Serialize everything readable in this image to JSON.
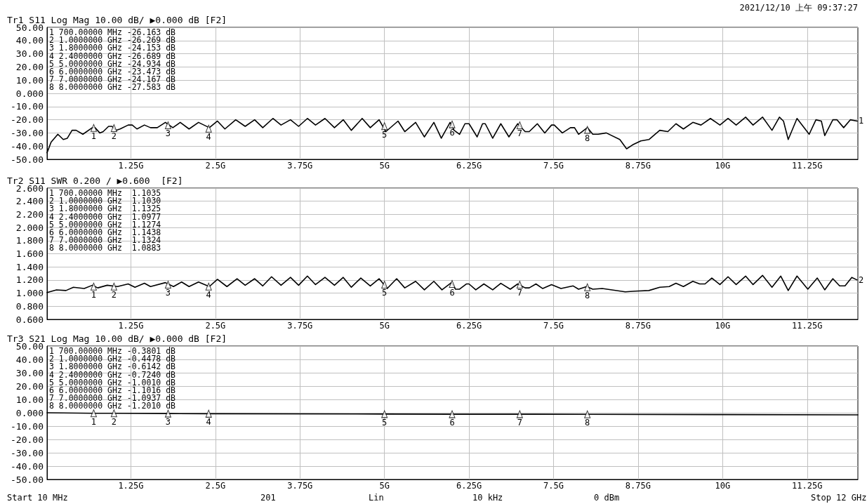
{
  "chart_data": [
    {
      "type": "line",
      "title": "Tr1 S11 Log Mag 10.00 dB/ ▶0.000 dB [F2]",
      "subtitle": "2021/12/10 上午 09:37:27",
      "annotations": [
        "1 700.00000 MHz -26.163 dB",
        "2 1.0000000 GHz -26.269 dB",
        "3 1.8000000 GHz -24.153 dB",
        "4 2.4000000 GHz -26.689 dB",
        "5 5.0000000 GHz -24.934 dB",
        "6 6.0000000 GHz -23.473 dB",
        "7 7.0000000 GHz -24.167 dB",
        "8 8.0000000 GHz -27.583 dB",
        {
          "text": "1",
          "x": 0.7,
          "y": -26.2
        },
        {
          "text": "2",
          "x": 1,
          "y": -26.3
        },
        {
          "text": "3",
          "x": 1.8,
          "y": -24.2
        },
        {
          "text": "4",
          "x": 2.4,
          "y": -26.7
        },
        {
          "text": "5",
          "x": 5,
          "y": -24.9
        },
        {
          "text": "6",
          "x": 6,
          "y": -23.5
        },
        {
          "text": "7",
          "x": 7,
          "y": -24.2
        },
        {
          "text": "8",
          "x": 8,
          "y": -27.6
        }
      ],
      "xlim": [
        0.01,
        12
      ],
      "xticks": [
        {
          "value": 1.25,
          "label": "1.25G"
        },
        {
          "value": 2.5,
          "label": "2.5G"
        },
        {
          "value": 3.75,
          "label": "3.75G"
        },
        {
          "value": 5,
          "label": "5G"
        },
        {
          "value": 6.25,
          "label": "6.25G"
        },
        {
          "value": 7.5,
          "label": "7.5G"
        },
        {
          "value": 8.75,
          "label": "8.75G"
        },
        {
          "value": 10,
          "label": "10G"
        },
        {
          "value": 11.25,
          "label": "11.25G"
        }
      ],
      "ylim": [
        -50,
        50
      ],
      "yticks": [
        {
          "value": -50,
          "label": "-50.00"
        },
        {
          "value": -40,
          "label": "-40.00"
        },
        {
          "value": -30,
          "label": "-30.00"
        },
        {
          "value": -20,
          "label": "-20.00"
        },
        {
          "value": -10,
          "label": "-10.00"
        },
        {
          "value": 0,
          "label": "0.000"
        },
        {
          "value": 10,
          "label": "10.00"
        },
        {
          "value": 20,
          "label": "20.00"
        },
        {
          "value": 30,
          "label": "30.00"
        },
        {
          "value": 40,
          "label": "40.00"
        },
        {
          "value": 50,
          "label": "50.00"
        }
      ],
      "grid": true,
      "legend": false,
      "marker": "none",
      "line_style": "solid",
      "series": [
        {
          "name": "1",
          "color": "#000000",
          "x": [
            0.01,
            0.07,
            0.17,
            0.25,
            0.31,
            0.38,
            0.44,
            0.54,
            0.68,
            0.72,
            0.79,
            0.84,
            0.92,
            0.97,
            1.03,
            1.09,
            1.21,
            1.27,
            1.34,
            1.45,
            1.54,
            1.64,
            1.76,
            1.87,
            1.98,
            2.11,
            2.25,
            2.41,
            2.53,
            2.64,
            2.8,
            2.94,
            3.08,
            3.2,
            3.35,
            3.47,
            3.61,
            3.73,
            3.86,
            3.98,
            4.12,
            4.26,
            4.39,
            4.51,
            4.67,
            4.79,
            4.92,
            5.02,
            5.2,
            5.3,
            5.46,
            5.59,
            5.73,
            5.84,
            5.97,
            6.03,
            6.11,
            6.19,
            6.25,
            6.37,
            6.45,
            6.49,
            6.6,
            6.72,
            6.84,
            6.97,
            7.08,
            7.14,
            7.26,
            7.37,
            7.47,
            7.51,
            7.63,
            7.75,
            7.81,
            7.87,
            8.0,
            8.08,
            8.16,
            8.28,
            8.48,
            8.58,
            8.67,
            8.79,
            8.91,
            9.07,
            9.19,
            9.31,
            9.42,
            9.56,
            9.68,
            9.82,
            9.96,
            10.08,
            10.2,
            10.34,
            10.45,
            10.59,
            10.73,
            10.84,
            10.9,
            10.97,
            11.1,
            11.28,
            11.38,
            11.46,
            11.51,
            11.63,
            11.69,
            11.79,
            11.89,
            11.99
          ],
          "values": [
            -45,
            -37,
            -31,
            -35,
            -34,
            -28,
            -28,
            -31,
            -26,
            -26,
            -30,
            -29,
            -25,
            -25,
            -28,
            -27,
            -24,
            -24,
            -27,
            -24,
            -26,
            -26,
            -22,
            -26,
            -22,
            -27,
            -22,
            -26,
            -21,
            -27,
            -20,
            -25,
            -20,
            -26,
            -19,
            -24,
            -20,
            -25,
            -19,
            -24,
            -19,
            -26,
            -20,
            -28,
            -19,
            -26,
            -20,
            -29,
            -21,
            -29,
            -22,
            -33,
            -22,
            -34,
            -22,
            -28,
            -31,
            -23,
            -23,
            -33,
            -23,
            -23,
            -34,
            -23,
            -33,
            -23,
            -29,
            -29,
            -23,
            -30,
            -24,
            -24,
            -30,
            -26,
            -26,
            -31,
            -26,
            -31,
            -31,
            -30,
            -35,
            -42,
            -39,
            -36,
            -35,
            -28,
            -29,
            -23,
            -27,
            -22,
            -24,
            -19,
            -24,
            -19,
            -24,
            -18,
            -24,
            -18,
            -28,
            -18,
            -21,
            -35,
            -19,
            -31,
            -20,
            -21,
            -32,
            -20,
            -20,
            -26,
            -20,
            -21
          ]
        },
        {
          "type": "scatter",
          "marker": "triangle",
          "color": "#ffffff",
          "x": [
            0.7,
            1,
            1.8,
            2.4,
            5,
            6,
            7,
            8
          ],
          "values": [
            -26.2,
            -26.3,
            -24.2,
            -26.7,
            -24.9,
            -23.5,
            -24.2,
            -27.6
          ]
        }
      ]
    },
    {
      "type": "line",
      "title": "Tr2 S11 SWR 0.200 / ▶0.600  [F2]",
      "annotations": [
        "1 700.00000 MHz  1.1035",
        "2 1.0000000 GHz  1.1030",
        "3 1.8000000 GHz  1.1325",
        "4 2.4000000 GHz  1.0977",
        "5 5.0000000 GHz  1.1274",
        "6 6.0000000 GHz  1.1438",
        "7 7.0000000 GHz  1.1324",
        "8 8.0000000 GHz  1.0883",
        {
          "text": "1",
          "x": 0.7,
          "y": 1.1
        },
        {
          "text": "2",
          "x": 1,
          "y": 1.1
        },
        {
          "text": "3",
          "x": 1.8,
          "y": 1.13
        },
        {
          "text": "4",
          "x": 2.4,
          "y": 1.1
        },
        {
          "text": "5",
          "x": 5,
          "y": 1.13
        },
        {
          "text": "6",
          "x": 6,
          "y": 1.14
        },
        {
          "text": "7",
          "x": 7,
          "y": 1.13
        },
        {
          "text": "8",
          "x": 8,
          "y": 1.09
        }
      ],
      "xlim": [
        0.01,
        12
      ],
      "xticks": [
        {
          "value": 1.25,
          "label": "1.25G"
        },
        {
          "value": 2.5,
          "label": "2.5G"
        },
        {
          "value": 3.75,
          "label": "3.75G"
        },
        {
          "value": 5,
          "label": "5G"
        },
        {
          "value": 6.25,
          "label": "6.25G"
        },
        {
          "value": 7.5,
          "label": "7.5G"
        },
        {
          "value": 8.75,
          "label": "8.75G"
        },
        {
          "value": 10,
          "label": "10G"
        },
        {
          "value": 11.25,
          "label": "11.25G"
        }
      ],
      "ylim": [
        0.6,
        2.6
      ],
      "yticks": [
        {
          "value": 0.6,
          "label": "0.600"
        },
        {
          "value": 0.8,
          "label": "0.800"
        },
        {
          "value": 1,
          "label": "1.000"
        },
        {
          "value": 1.2,
          "label": "1.200"
        },
        {
          "value": 1.4,
          "label": "1.400"
        },
        {
          "value": 1.6,
          "label": "1.600"
        },
        {
          "value": 1.8,
          "label": "1.800"
        },
        {
          "value": 2,
          "label": "2.000"
        },
        {
          "value": 2.2,
          "label": "2.200"
        },
        {
          "value": 2.4,
          "label": "2.400"
        },
        {
          "value": 2.6,
          "label": "2.600"
        }
      ],
      "grid": true,
      "legend": false,
      "marker": "none",
      "line_style": "solid",
      "series": [
        {
          "name": "2",
          "color": "#000000",
          "x": [
            0.01,
            0.15,
            0.29,
            0.4,
            0.56,
            0.68,
            0.76,
            0.9,
            1.05,
            1.21,
            1.31,
            1.45,
            1.54,
            1.76,
            1.88,
            2.0,
            2.11,
            2.25,
            2.41,
            2.53,
            2.67,
            2.82,
            2.94,
            3.08,
            3.2,
            3.33,
            3.47,
            3.61,
            3.73,
            3.86,
            3.98,
            4.12,
            4.26,
            4.39,
            4.51,
            4.65,
            4.79,
            4.92,
            5.04,
            5.18,
            5.3,
            5.46,
            5.59,
            5.73,
            5.85,
            5.99,
            6.05,
            6.11,
            6.21,
            6.25,
            6.35,
            6.47,
            6.6,
            6.72,
            6.86,
            6.97,
            7.08,
            7.14,
            7.24,
            7.34,
            7.47,
            7.61,
            7.79,
            7.87,
            7.99,
            8.08,
            8.22,
            8.56,
            8.71,
            8.91,
            9.07,
            9.21,
            9.31,
            9.42,
            9.56,
            9.66,
            9.74,
            9.84,
            9.96,
            10.08,
            10.2,
            10.34,
            10.45,
            10.59,
            10.73,
            10.86,
            10.97,
            11.1,
            11.26,
            11.4,
            11.51,
            11.63,
            11.73,
            11.81,
            11.91,
            11.99
          ],
          "values": [
            1.01,
            1.05,
            1.04,
            1.09,
            1.07,
            1.12,
            1.08,
            1.12,
            1.1,
            1.14,
            1.09,
            1.15,
            1.1,
            1.16,
            1.1,
            1.17,
            1.1,
            1.17,
            1.1,
            1.21,
            1.1,
            1.22,
            1.12,
            1.22,
            1.11,
            1.25,
            1.12,
            1.24,
            1.12,
            1.26,
            1.13,
            1.24,
            1.12,
            1.24,
            1.09,
            1.23,
            1.11,
            1.22,
            1.07,
            1.22,
            1.08,
            1.18,
            1.05,
            1.18,
            1.05,
            1.16,
            1.06,
            1.06,
            1.14,
            1.14,
            1.05,
            1.14,
            1.05,
            1.15,
            1.06,
            1.14,
            1.08,
            1.08,
            1.14,
            1.07,
            1.13,
            1.07,
            1.11,
            1.06,
            1.1,
            1.06,
            1.07,
            1.02,
            1.03,
            1.04,
            1.09,
            1.1,
            1.15,
            1.1,
            1.18,
            1.14,
            1.14,
            1.23,
            1.13,
            1.25,
            1.13,
            1.26,
            1.13,
            1.27,
            1.09,
            1.26,
            1.04,
            1.26,
            1.06,
            1.23,
            1.05,
            1.22,
            1.11,
            1.11,
            1.24,
            1.2
          ]
        },
        {
          "type": "scatter",
          "marker": "triangle",
          "color": "#ffffff",
          "x": [
            0.7,
            1,
            1.8,
            2.4,
            5,
            6,
            7,
            8
          ],
          "values": [
            1.1,
            1.1,
            1.13,
            1.1,
            1.13,
            1.14,
            1.13,
            1.09
          ]
        }
      ]
    },
    {
      "type": "line",
      "title": "Tr3 S21 Log Mag 10.00 dB/ ▶0.000 dB [F2]",
      "annotations": [
        "1 700.00000 MHz -0.3801 dB",
        "2 1.0000000 GHz -0.4478 dB",
        "3 1.8000000 GHz -0.6142 dB",
        "4 2.4000000 GHz -0.7240 dB",
        "5 5.0000000 GHz -1.0010 dB",
        "6 6.0000000 GHz -1.1016 dB",
        "7 7.0000000 GHz -1.0937 dB",
        "8 8.0000000 GHz -1.2010 dB",
        "Start 10 MHz",
        "201",
        "Lin",
        "10 kHz",
        "0 dBm",
        "Stop 12 GHz",
        {
          "text": "1",
          "x": 0.7,
          "y": -0.4
        },
        {
          "text": "2",
          "x": 1,
          "y": -0.4
        },
        {
          "text": "3",
          "x": 1.8,
          "y": -0.6
        },
        {
          "text": "4",
          "x": 2.4,
          "y": -0.7
        },
        {
          "text": "5",
          "x": 5,
          "y": -1
        },
        {
          "text": "6",
          "x": 6,
          "y": -1.1
        },
        {
          "text": "7",
          "x": 7,
          "y": -1.1
        },
        {
          "text": "8",
          "x": 8,
          "y": -1.2
        }
      ],
      "xlim": [
        0.01,
        12
      ],
      "xticks": [
        {
          "value": 1.25,
          "label": "1.25G"
        },
        {
          "value": 2.5,
          "label": "2.5G"
        },
        {
          "value": 3.75,
          "label": "3.75G"
        },
        {
          "value": 5,
          "label": "5G"
        },
        {
          "value": 6.25,
          "label": "6.25G"
        },
        {
          "value": 7.5,
          "label": "7.5G"
        },
        {
          "value": 8.75,
          "label": "8.75G"
        },
        {
          "value": 10,
          "label": "10G"
        },
        {
          "value": 11.25,
          "label": "11.25G"
        }
      ],
      "ylim": [
        -50,
        50
      ],
      "yticks": [
        {
          "value": -50,
          "label": "-50.00"
        },
        {
          "value": -40,
          "label": "-40.00"
        },
        {
          "value": -30,
          "label": "-30.00"
        },
        {
          "value": -20,
          "label": "-20.00"
        },
        {
          "value": -10,
          "label": "-10.00"
        },
        {
          "value": 0,
          "label": "0.000"
        },
        {
          "value": 10,
          "label": "10.00"
        },
        {
          "value": 20,
          "label": "20.00"
        },
        {
          "value": 30,
          "label": "30.00"
        },
        {
          "value": 40,
          "label": "40.00"
        },
        {
          "value": 50,
          "label": "50.00"
        }
      ],
      "grid": true,
      "legend": false,
      "marker": "none",
      "line_style": "solid",
      "series": [
        {
          "color": "#000000",
          "x": [
            0.01,
            0.7,
            1,
            1.8,
            2.4,
            5,
            6,
            7,
            8,
            10,
            12
          ],
          "values": [
            0,
            -0.4,
            -0.4,
            -0.6,
            -0.7,
            -1,
            -1.1,
            -1.1,
            -1.2,
            -1.4,
            -1.6
          ]
        },
        {
          "type": "scatter",
          "marker": "triangle",
          "color": "#ffffff",
          "x": [
            0.7,
            1,
            1.8,
            2.4,
            5,
            6,
            7,
            8
          ],
          "values": [
            -0.4,
            -0.4,
            -0.6,
            -0.7,
            -1,
            -1.1,
            -1.1,
            -1.2
          ]
        }
      ]
    }
  ]
}
